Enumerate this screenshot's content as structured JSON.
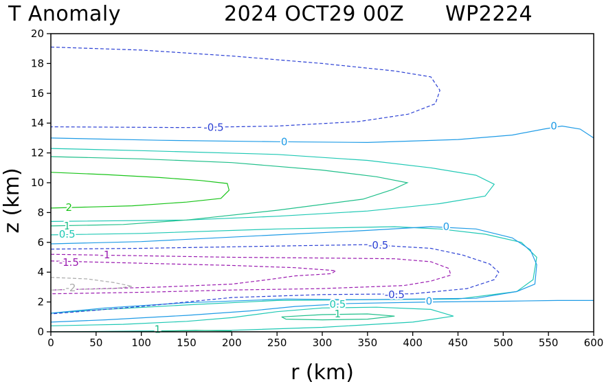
{
  "title": {
    "left": "T Anomaly",
    "center": "2024 OCT29 00Z",
    "right": "WP2224"
  },
  "chart_data": {
    "type": "contour",
    "xlabel": "r (km)",
    "ylabel": "z (km)",
    "xlim": [
      0,
      600
    ],
    "ylim": [
      0,
      20
    ],
    "xticks": [
      "0",
      "50",
      "100",
      "150",
      "200",
      "250",
      "300",
      "350",
      "400",
      "450",
      "500",
      "550",
      "600"
    ],
    "yticks": [
      "0",
      "2",
      "4",
      "6",
      "8",
      "10",
      "12",
      "14",
      "16",
      "18",
      "20"
    ],
    "contour_colors": {
      "-2": "#a9a9a9",
      "-1.5": "#9a1ab0",
      "-1": "#9a1ab0",
      "-0.5": "#2a3fd4",
      "0": "#1e9be6",
      "0.5": "#1ec8b4",
      "1": "#1fbf8a",
      "2": "#18c418"
    },
    "contours": [
      {
        "level": -0.5,
        "color": "#2a3fd4",
        "dashed": true,
        "points": [
          [
            0,
            19.1
          ],
          [
            100,
            18.9
          ],
          [
            200,
            18.5
          ],
          [
            300,
            18.0
          ],
          [
            380,
            17.5
          ],
          [
            420,
            17.1
          ],
          [
            430,
            16.2
          ],
          [
            425,
            15.3
          ],
          [
            395,
            14.6
          ],
          [
            340,
            14.1
          ],
          [
            250,
            13.8
          ],
          [
            150,
            13.7
          ],
          [
            0,
            13.75
          ]
        ]
      },
      {
        "level": 0,
        "color": "#1e9be6",
        "dashed": false,
        "points": [
          [
            0,
            13.0
          ],
          [
            120,
            12.85
          ],
          [
            250,
            12.75
          ],
          [
            350,
            12.7
          ],
          [
            450,
            12.9
          ],
          [
            510,
            13.2
          ],
          [
            545,
            13.6
          ],
          [
            565,
            13.8
          ],
          [
            585,
            13.6
          ],
          [
            600,
            13.0
          ]
        ]
      },
      {
        "level": 0.5,
        "color": "#1ec8b4",
        "dashed": false,
        "points": [
          [
            0,
            12.3
          ],
          [
            100,
            12.15
          ],
          [
            250,
            11.9
          ],
          [
            350,
            11.5
          ],
          [
            420,
            11.0
          ],
          [
            470,
            10.5
          ],
          [
            490,
            9.9
          ],
          [
            480,
            9.1
          ],
          [
            430,
            8.6
          ],
          [
            350,
            8.1
          ],
          [
            250,
            7.75
          ],
          [
            150,
            7.5
          ],
          [
            0,
            7.4
          ]
        ]
      },
      {
        "level": 1,
        "color": "#1fbf8a",
        "dashed": false,
        "points": [
          [
            0,
            11.75
          ],
          [
            100,
            11.6
          ],
          [
            200,
            11.35
          ],
          [
            300,
            10.85
          ],
          [
            360,
            10.4
          ],
          [
            394,
            10.0
          ],
          [
            378,
            9.55
          ],
          [
            345,
            8.9
          ],
          [
            250,
            8.15
          ],
          [
            150,
            7.5
          ],
          [
            80,
            7.2
          ],
          [
            0,
            7.1
          ]
        ]
      },
      {
        "level": 2,
        "color": "#18c418",
        "dashed": false,
        "points": [
          [
            0,
            10.7
          ],
          [
            60,
            10.55
          ],
          [
            120,
            10.35
          ],
          [
            165,
            10.15
          ],
          [
            195,
            9.95
          ],
          [
            197,
            9.5
          ],
          [
            188,
            8.95
          ],
          [
            150,
            8.7
          ],
          [
            90,
            8.45
          ],
          [
            0,
            8.3
          ]
        ]
      },
      {
        "level": 0.5,
        "color": "#1ec8b4",
        "dashed": false,
        "points": [
          [
            0,
            6.5
          ],
          [
            100,
            6.6
          ],
          [
            250,
            6.9
          ],
          [
            380,
            7.05
          ],
          [
            430,
            6.9
          ],
          [
            480,
            6.55
          ],
          [
            520,
            6.0
          ],
          [
            537,
            5.0
          ],
          [
            533,
            3.5
          ],
          [
            515,
            2.7
          ],
          [
            450,
            2.2
          ],
          [
            350,
            2.15
          ],
          [
            250,
            2.1
          ],
          [
            150,
            1.8
          ],
          [
            60,
            1.5
          ],
          [
            0,
            1.25
          ]
        ]
      },
      {
        "level": 0,
        "color": "#1e9be6",
        "dashed": false,
        "points": [
          [
            0,
            5.9
          ],
          [
            100,
            6.05
          ],
          [
            250,
            6.5
          ],
          [
            350,
            6.8
          ],
          [
            420,
            7.05
          ],
          [
            470,
            6.9
          ],
          [
            510,
            6.3
          ],
          [
            530,
            5.5
          ],
          [
            537,
            4.5
          ],
          [
            535,
            3.2
          ],
          [
            515,
            2.7
          ],
          [
            470,
            2.25
          ],
          [
            400,
            2.2
          ],
          [
            340,
            2.15
          ],
          [
            260,
            2.2
          ],
          [
            150,
            1.95
          ],
          [
            60,
            1.6
          ],
          [
            0,
            1.25
          ]
        ]
      },
      {
        "level": -0.5,
        "color": "#2a3fd4",
        "dashed": true,
        "points": [
          [
            0,
            5.55
          ],
          [
            100,
            5.6
          ],
          [
            250,
            5.75
          ],
          [
            350,
            5.85
          ],
          [
            420,
            5.6
          ],
          [
            455,
            5.15
          ],
          [
            485,
            4.55
          ],
          [
            495,
            4.0
          ],
          [
            490,
            3.5
          ],
          [
            460,
            2.9
          ],
          [
            400,
            2.55
          ],
          [
            300,
            2.5
          ],
          [
            200,
            2.3
          ],
          [
            100,
            1.7
          ],
          [
            0,
            1.2
          ]
        ]
      },
      {
        "level": -1,
        "color": "#9a1ab0",
        "dashed": true,
        "points": [
          [
            0,
            5.2
          ],
          [
            100,
            5.1
          ],
          [
            200,
            5.0
          ],
          [
            300,
            4.95
          ],
          [
            380,
            4.9
          ],
          [
            420,
            4.7
          ],
          [
            440,
            4.25
          ],
          [
            442,
            3.8
          ],
          [
            420,
            3.4
          ],
          [
            390,
            3.1
          ],
          [
            300,
            2.9
          ],
          [
            200,
            2.8
          ],
          [
            100,
            2.65
          ],
          [
            0,
            2.55
          ]
        ]
      },
      {
        "level": -1.5,
        "color": "#9a1ab0",
        "dashed": true,
        "points": [
          [
            0,
            4.75
          ],
          [
            100,
            4.6
          ],
          [
            200,
            4.45
          ],
          [
            270,
            4.3
          ],
          [
            315,
            4.1
          ],
          [
            310,
            3.9
          ],
          [
            270,
            3.75
          ],
          [
            240,
            3.5
          ],
          [
            200,
            3.2
          ],
          [
            120,
            3.0
          ],
          [
            0,
            2.8
          ]
        ]
      },
      {
        "level": -2,
        "color": "#a9a9a9",
        "dashed": true,
        "points": [
          [
            0,
            3.65
          ],
          [
            40,
            3.55
          ],
          [
            70,
            3.3
          ],
          [
            90,
            3.05
          ],
          [
            70,
            2.9
          ],
          [
            30,
            2.85
          ],
          [
            0,
            2.8
          ]
        ]
      },
      {
        "level": 0,
        "color": "#1e9be6",
        "dashed": false,
        "points": [
          [
            0,
            0.65
          ],
          [
            60,
            0.8
          ],
          [
            150,
            1.1
          ],
          [
            220,
            1.4
          ],
          [
            270,
            1.7
          ],
          [
            330,
            1.9
          ],
          [
            420,
            2.0
          ],
          [
            500,
            2.05
          ],
          [
            560,
            2.1
          ],
          [
            600,
            2.1
          ]
        ]
      },
      {
        "level": 0.5,
        "color": "#1ec8b4",
        "dashed": false,
        "points": [
          [
            0,
            0.4
          ],
          [
            80,
            0.5
          ],
          [
            150,
            0.7
          ],
          [
            200,
            0.95
          ],
          [
            250,
            1.35
          ],
          [
            300,
            1.6
          ],
          [
            360,
            1.65
          ],
          [
            420,
            1.5
          ],
          [
            445,
            1.05
          ],
          [
            400,
            0.65
          ],
          [
            300,
            0.3
          ],
          [
            200,
            0.1
          ],
          [
            100,
            0.05
          ],
          [
            0,
            0.0
          ]
        ]
      },
      {
        "level": 1,
        "color": "#1fbf8a",
        "dashed": false,
        "points": [
          [
            255,
            1.0
          ],
          [
            300,
            1.15
          ],
          [
            350,
            1.2
          ],
          [
            380,
            1.05
          ],
          [
            350,
            0.85
          ],
          [
            300,
            0.8
          ],
          [
            260,
            0.85
          ],
          [
            255,
            1.0
          ]
        ]
      },
      {
        "level": 1,
        "color": "#1fbf8a",
        "dashed": false,
        "points": [
          [
            100,
            0.0
          ],
          [
            130,
            0.05
          ],
          [
            160,
            0.1
          ],
          [
            200,
            0.05
          ]
        ]
      }
    ],
    "contour_labels": [
      {
        "text": "-0.5",
        "x": 180,
        "y": 13.7,
        "color": "#2a3fd4"
      },
      {
        "text": "0",
        "x": 258,
        "y": 12.75,
        "color": "#1e9be6"
      },
      {
        "text": "0",
        "x": 556,
        "y": 13.8,
        "color": "#1e9be6"
      },
      {
        "text": "2",
        "x": 20,
        "y": 8.35,
        "color": "#18c418"
      },
      {
        "text": "1",
        "x": 18,
        "y": 7.1,
        "color": "#1fbf8a"
      },
      {
        "text": "0.5",
        "x": 18,
        "y": 6.55,
        "color": "#1ec8b4"
      },
      {
        "text": "0",
        "x": 437,
        "y": 7.05,
        "color": "#1e9be6"
      },
      {
        "text": "-0.5",
        "x": 362,
        "y": 5.8,
        "color": "#2a3fd4"
      },
      {
        "text": "-1",
        "x": 60,
        "y": 5.15,
        "color": "#9a1ab0"
      },
      {
        "text": "-1.5",
        "x": 20,
        "y": 4.65,
        "color": "#9a1ab0"
      },
      {
        "text": "-2",
        "x": 22,
        "y": 2.95,
        "color": "#a9a9a9"
      },
      {
        "text": "-0.5",
        "x": 380,
        "y": 2.5,
        "color": "#2a3fd4"
      },
      {
        "text": "0",
        "x": 418,
        "y": 2.05,
        "color": "#1e9be6"
      },
      {
        "text": "0.5",
        "x": 317,
        "y": 1.85,
        "color": "#1ec8b4"
      },
      {
        "text": "1",
        "x": 317,
        "y": 1.2,
        "color": "#1fbf8a"
      },
      {
        "text": "1",
        "x": 118,
        "y": 0.15,
        "color": "#1fbf8a"
      }
    ]
  }
}
